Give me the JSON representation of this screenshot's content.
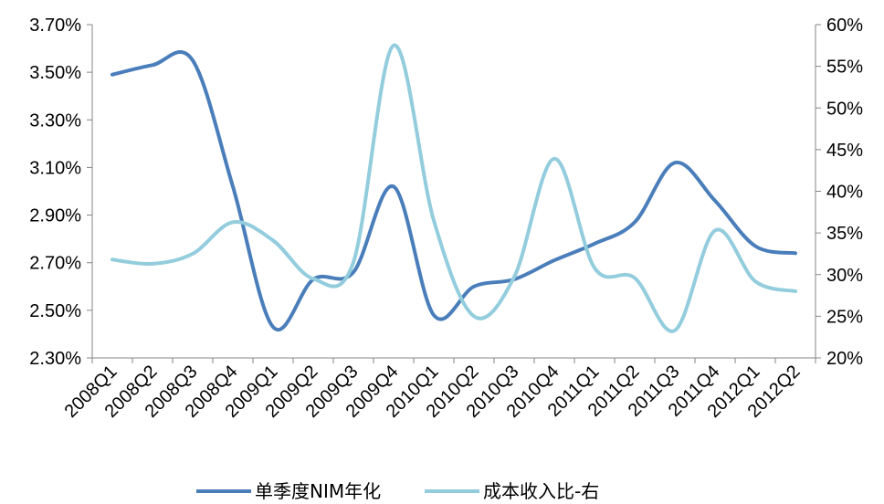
{
  "chart_data": {
    "type": "line",
    "title": "",
    "xlabel": "",
    "ylabel": "",
    "categories": [
      "2008Q1",
      "2008Q2",
      "2008Q3",
      "2008Q4",
      "2009Q1",
      "2009Q2",
      "2009Q3",
      "2009Q4",
      "2010Q1",
      "2010Q2",
      "2010Q3",
      "2010Q4",
      "2011Q1",
      "2011Q2",
      "2011Q3",
      "2011Q4",
      "2012Q1",
      "2012Q2"
    ],
    "y_left": {
      "min": 2.3,
      "max": 3.7,
      "step": 0.2,
      "tick_labels": [
        "2.30%",
        "2.50%",
        "2.70%",
        "2.90%",
        "3.10%",
        "3.30%",
        "3.50%",
        "3.70%"
      ]
    },
    "y_right": {
      "min": 20,
      "max": 60,
      "step": 5,
      "tick_labels": [
        "20%",
        "25%",
        "30%",
        "35%",
        "40%",
        "45%",
        "50%",
        "55%",
        "60%"
      ]
    },
    "grid": false,
    "smooth": true,
    "legend_position": "bottom",
    "series": [
      {
        "name": "单季度NIM年化",
        "axis": "left",
        "color": "#4A7EBB",
        "values": [
          3.49,
          3.53,
          3.55,
          3.02,
          2.43,
          2.63,
          2.66,
          3.02,
          2.48,
          2.6,
          2.63,
          2.71,
          2.78,
          2.87,
          3.12,
          2.96,
          2.77,
          2.74
        ]
      },
      {
        "name": "成本收入比-右",
        "axis": "right",
        "color": "#93CDDD",
        "values": [
          31.8,
          31.3,
          32.5,
          36.3,
          34.1,
          29.5,
          31.5,
          57.5,
          36.5,
          25.0,
          29.7,
          43.9,
          30.8,
          29.6,
          23.3,
          35.3,
          29.2,
          28.0
        ]
      }
    ]
  }
}
